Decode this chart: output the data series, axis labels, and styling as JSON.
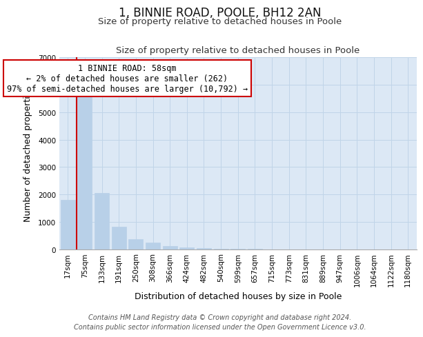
{
  "title": "1, BINNIE ROAD, POOLE, BH12 2AN",
  "subtitle": "Size of property relative to detached houses in Poole",
  "xlabel": "Distribution of detached houses by size in Poole",
  "ylabel": "Number of detached properties",
  "bar_labels": [
    "17sqm",
    "75sqm",
    "133sqm",
    "191sqm",
    "250sqm",
    "308sqm",
    "366sqm",
    "424sqm",
    "482sqm",
    "540sqm",
    "599sqm",
    "657sqm",
    "715sqm",
    "773sqm",
    "831sqm",
    "889sqm",
    "947sqm",
    "1006sqm",
    "1064sqm",
    "1122sqm",
    "1180sqm"
  ],
  "bar_values": [
    1800,
    5750,
    2050,
    830,
    370,
    230,
    115,
    65,
    30,
    12,
    5,
    2,
    1,
    0,
    0,
    0,
    0,
    0,
    0,
    0,
    0
  ],
  "bar_color": "#b8d0e8",
  "bar_edge_color": "#b8d0e8",
  "marker_color": "#cc0000",
  "ylim": [
    0,
    7000
  ],
  "yticks": [
    0,
    1000,
    2000,
    3000,
    4000,
    5000,
    6000,
    7000
  ],
  "annotation_title": "1 BINNIE ROAD: 58sqm",
  "annotation_line1": "← 2% of detached houses are smaller (262)",
  "annotation_line2": "97% of semi-detached houses are larger (10,792) →",
  "annotation_box_color": "#ffffff",
  "annotation_box_edge_color": "#cc0000",
  "footer_line1": "Contains HM Land Registry data © Crown copyright and database right 2024.",
  "footer_line2": "Contains public sector information licensed under the Open Government Licence v3.0.",
  "background_color": "#ffffff",
  "plot_bg_color": "#dce8f5",
  "grid_color": "#c0d4e8",
  "title_fontsize": 12,
  "subtitle_fontsize": 9.5,
  "axis_label_fontsize": 9,
  "tick_fontsize": 7.5,
  "annotation_fontsize": 8.5,
  "footer_fontsize": 7
}
